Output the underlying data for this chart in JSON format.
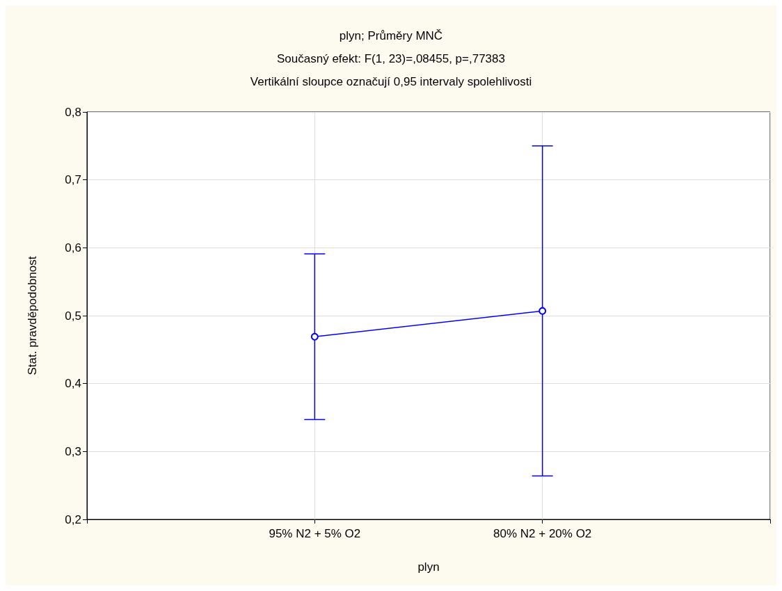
{
  "chart_data": {
    "type": "line",
    "title": "plyn; Průměry MNČ",
    "subtitle": "Současný efekt: F(1, 23)=,08455, p=,77383",
    "annotations": [
      "Vertikální sloupce označují 0,95 intervaly spolehlivosti"
    ],
    "xlabel": "plyn",
    "ylabel": "Stat. pravděpodobnost",
    "categories": [
      "95% N2 + 5% O2",
      "80% N2 + 20% O2"
    ],
    "series": [
      {
        "color": "#0000ff",
        "values": [
          0.469,
          0.507
        ],
        "errors": [
          [
            0.347,
            0.591
          ],
          [
            0.264,
            0.75
          ]
        ]
      }
    ],
    "ylim": [
      0.2,
      0.8
    ],
    "yticks": [
      {
        "value": 0.2,
        "label": "0,2"
      },
      {
        "value": 0.3,
        "label": "0,3"
      },
      {
        "value": 0.4,
        "label": "0,4"
      },
      {
        "value": 0.5,
        "label": "0,5"
      },
      {
        "value": 0.6,
        "label": "0,6"
      },
      {
        "value": 0.7,
        "label": "0,7"
      },
      {
        "value": 0.8,
        "label": "0,8"
      }
    ],
    "grid": true,
    "marker": "circle",
    "line_style": "solid"
  }
}
